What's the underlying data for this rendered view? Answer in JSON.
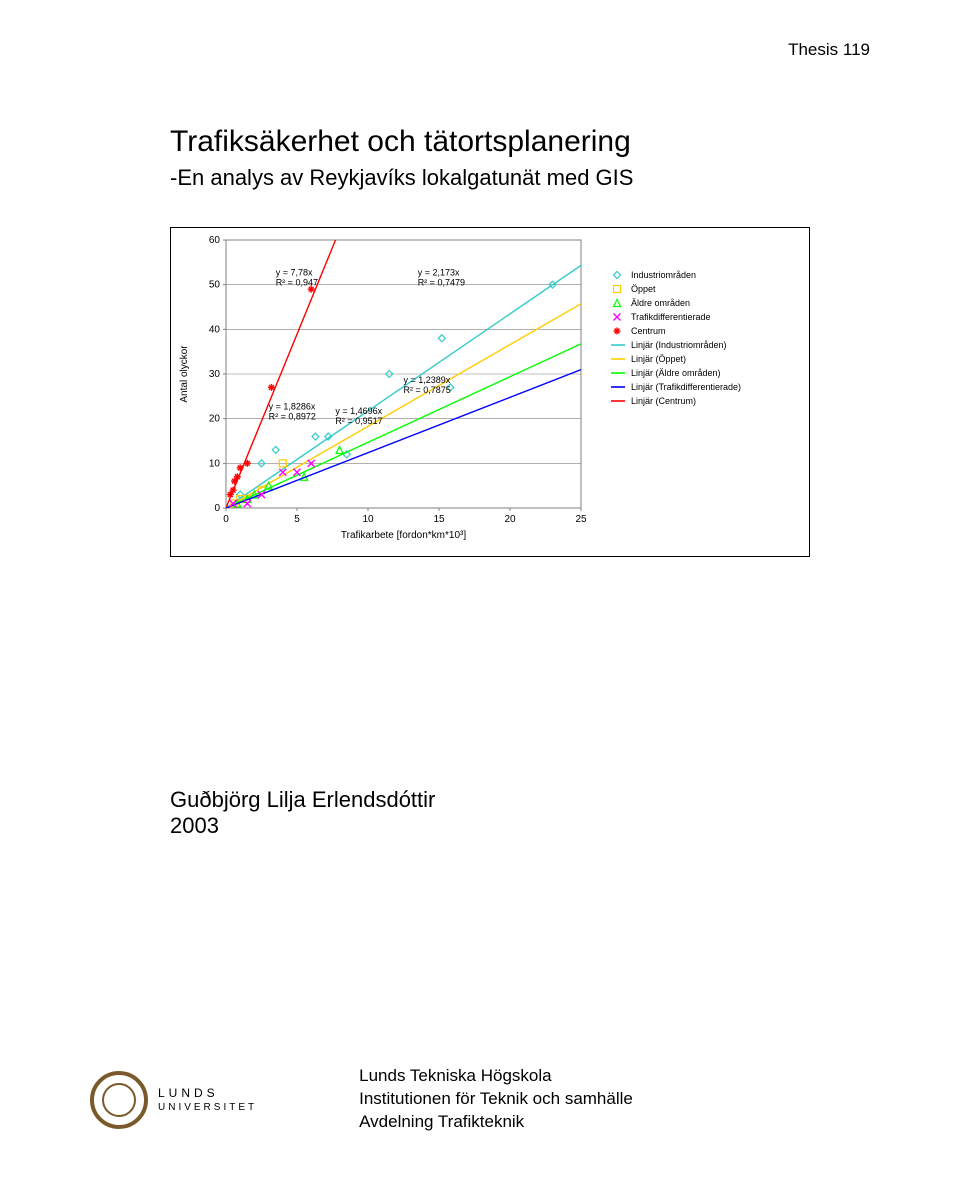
{
  "header": {
    "thesis_label": "Thesis 119"
  },
  "title": "Trafiksäkerhet och tätortsplanering",
  "subtitle": "-En analys av Reykjavíks lokalgatunät med GIS",
  "author": "Guðbjörg Lilja Erlendsdóttir",
  "year": "2003",
  "footer": {
    "logo_line1": "LUNDS",
    "logo_line2": "UNIVERSITET",
    "line1": "Lunds Tekniska Högskola",
    "line2": "Institutionen för Teknik och samhälle",
    "line3": "Avdelning Trafikteknik"
  },
  "chart": {
    "type": "scatter-with-regression",
    "background_color": "#ffffff",
    "plot_bg": "#ffffff",
    "grid_color": "#808080",
    "axis_color": "#808080",
    "axis_text_color": "#000000",
    "axis_fontsize": 10,
    "ylabel": "Antal olyckor",
    "xlabel": "Trafikarbete [fordon*km*10³]",
    "x": {
      "min": 0,
      "max": 25,
      "step": 5
    },
    "y": {
      "min": 0,
      "max": 60,
      "step": 10
    },
    "legend_fontsize": 9,
    "legend": [
      {
        "label": "Industriområden",
        "kind": "marker",
        "marker": "diamond",
        "color": "#33cccc"
      },
      {
        "label": "Öppet",
        "kind": "marker",
        "marker": "square",
        "color": "#ffcc00"
      },
      {
        "label": "Äldre områden",
        "kind": "marker",
        "marker": "triangle",
        "color": "#00ff00"
      },
      {
        "label": "Trafikdifferentierade",
        "kind": "marker",
        "marker": "x",
        "color": "#ff00ff"
      },
      {
        "label": "Centrum",
        "kind": "marker",
        "marker": "star",
        "color": "#ff0000"
      },
      {
        "label": "Linjär (Industriområden)",
        "kind": "line",
        "color": "#33cccc"
      },
      {
        "label": "Linjär (Öppet)",
        "kind": "line",
        "color": "#ffcc00"
      },
      {
        "label": "Linjär (Äldre områden)",
        "kind": "line",
        "color": "#00ff00"
      },
      {
        "label": "Linjär (Trafikdifferentierade)",
        "kind": "line",
        "color": "#0000ff"
      },
      {
        "label": "Linjär (Centrum)",
        "kind": "line",
        "color": "#ff0000"
      }
    ],
    "series": {
      "centrum": {
        "slope": 7.78,
        "r2": 0.947,
        "eq_label": "y = 7,78x",
        "r2_label": "R² = 0,947",
        "marker": "star",
        "marker_color": "#ff0000",
        "line_color": "#ff0000",
        "points": [
          [
            0.3,
            3
          ],
          [
            0.5,
            4
          ],
          [
            0.6,
            6
          ],
          [
            0.8,
            7
          ],
          [
            1.0,
            9
          ],
          [
            1.5,
            10
          ],
          [
            3.2,
            27
          ],
          [
            6.0,
            49
          ]
        ],
        "label_pos": [
          3.5,
          52
        ]
      },
      "industri": {
        "slope": 2.173,
        "r2": 0.7479,
        "eq_label": "y = 2,173x",
        "r2_label": "R² = 0,7479",
        "marker": "diamond",
        "marker_color": "#33cccc",
        "line_color": "#33cccc",
        "points": [
          [
            1.0,
            3
          ],
          [
            2.5,
            10
          ],
          [
            3.5,
            13
          ],
          [
            6.3,
            16
          ],
          [
            7.2,
            16
          ],
          [
            8.5,
            12
          ],
          [
            11.5,
            30
          ],
          [
            15.2,
            38
          ],
          [
            15.8,
            27
          ],
          [
            23,
            50
          ]
        ],
        "label_pos": [
          13.5,
          52
        ]
      },
      "oppet": {
        "slope": 1.8286,
        "r2": 0.8972,
        "eq_label": "y = 1,8286x",
        "r2_label": "R² = 0,8972",
        "marker": "square",
        "marker_color": "#ffcc00",
        "line_color": "#ffcc00",
        "points": [
          [
            0.6,
            1
          ],
          [
            1.0,
            2
          ],
          [
            1.5,
            2
          ],
          [
            2.5,
            4
          ],
          [
            4.0,
            10
          ]
        ],
        "label_pos": [
          3.0,
          22
        ]
      },
      "aldre": {
        "slope": 1.4696,
        "r2": 0.9517,
        "eq_label": "y = 1,4696x",
        "r2_label": "R² = 0,9517",
        "marker": "triangle",
        "marker_color": "#00ff00",
        "line_color": "#00ff00",
        "points": [
          [
            0.8,
            1
          ],
          [
            1.5,
            2
          ],
          [
            2.0,
            3
          ],
          [
            3.0,
            5
          ],
          [
            5.5,
            7
          ],
          [
            8.0,
            13
          ]
        ],
        "label_pos": [
          7.7,
          21
        ]
      },
      "trafdiff": {
        "slope": 1.2389,
        "r2": 0.7875,
        "eq_label": "y = 1,2389x",
        "r2_label": "R² = 0,7875",
        "marker": "x",
        "marker_color": "#ff00ff",
        "line_color": "#0000ff",
        "points": [
          [
            0.5,
            1
          ],
          [
            1.5,
            1
          ],
          [
            2.5,
            3
          ],
          [
            4.0,
            8
          ],
          [
            5.0,
            8
          ],
          [
            6.0,
            10
          ]
        ],
        "label_pos": [
          12.5,
          28
        ]
      }
    }
  }
}
